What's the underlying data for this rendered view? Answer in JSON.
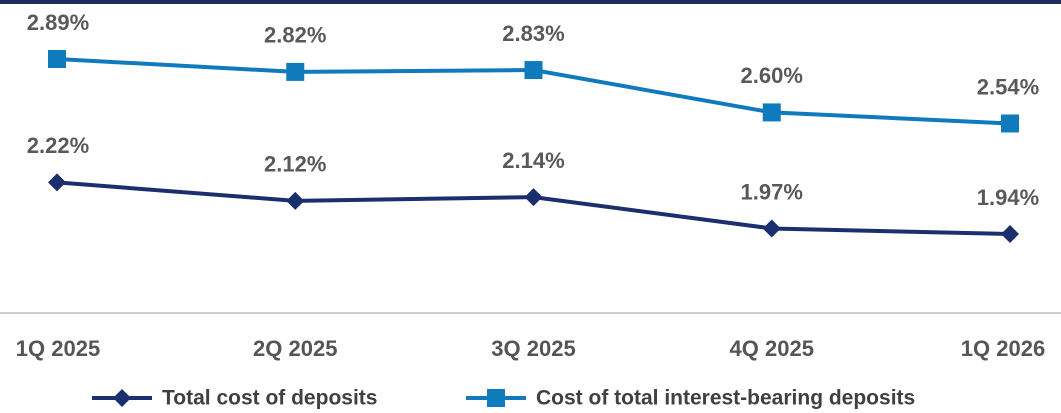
{
  "chart_data": {
    "type": "line",
    "categories": [
      "1Q 2025",
      "2Q 2025",
      "3Q 2025",
      "4Q 2025",
      "1Q 2026"
    ],
    "series": [
      {
        "name": "Total cost of deposits",
        "color": "#1b2f6e",
        "marker": "diamond",
        "values": [
          2.22,
          2.12,
          2.14,
          1.97,
          1.94
        ],
        "value_labels": [
          "2.22%",
          "2.12%",
          "2.14%",
          "1.97%",
          "1.94%"
        ]
      },
      {
        "name": "Cost of total interest-bearing deposits",
        "color": "#0f7bbd",
        "marker": "square",
        "values": [
          2.89,
          2.82,
          2.83,
          2.6,
          2.54
        ],
        "value_labels": [
          "2.89%",
          "2.82%",
          "2.83%",
          "2.60%",
          "2.54%"
        ]
      }
    ],
    "legend": "bottom"
  }
}
